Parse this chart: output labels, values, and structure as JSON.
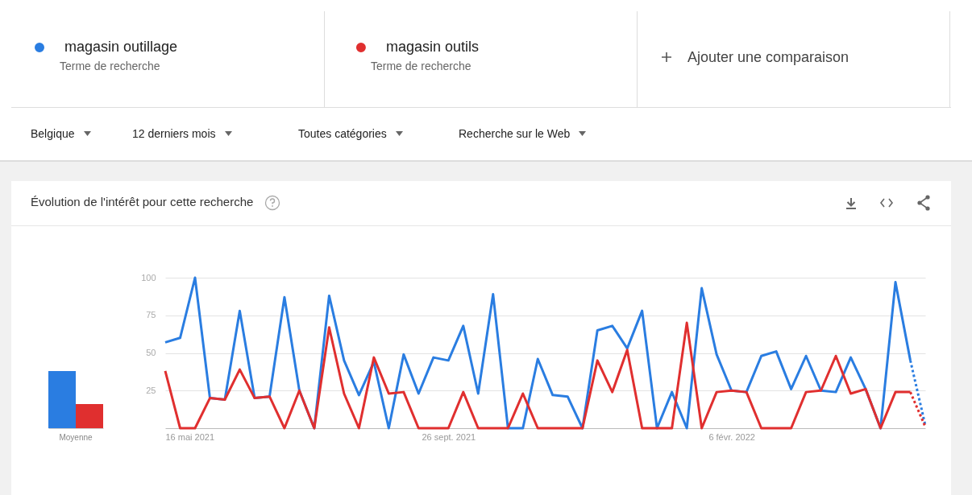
{
  "chart_data": [
    {
      "type": "other",
      "annotations": [
        "Terme de recherche",
        "Terme de recherche",
        "Ajouter une comparaison",
        "Belgique",
        "12 derniers mois",
        "Toutes catégories",
        "Recherche sur le Web"
      ]
    },
    {
      "type": "bar",
      "categories": [
        "Moyenne"
      ],
      "ylim": [
        0,
        100
      ],
      "tick_labels": "x",
      "series": [
        {
          "color": "#2a7de1",
          "values": [
            38
          ]
        },
        {
          "color": "#e02f2f",
          "values": [
            16
          ]
        }
      ]
    },
    {
      "type": "line",
      "title": "Évolution de l'intérêt pour cette recherche",
      "legend": "top",
      "grid": "y",
      "ylim": [
        0,
        100
      ],
      "yticks": [
        25,
        50,
        75,
        100
      ],
      "xlim": [
        "2021-05-16",
        "2022-05-08"
      ],
      "xticks": [
        {
          "value": "2021-05-16",
          "label": "16 mai 2021"
        },
        {
          "value": "2021-09-26",
          "label": "26 sept. 2021"
        },
        {
          "value": "2022-02-06",
          "label": "6 févr. 2022"
        }
      ],
      "x": [
        "2021-05-16",
        "2021-05-23",
        "2021-05-30",
        "2021-06-06",
        "2021-06-13",
        "2021-06-20",
        "2021-06-27",
        "2021-07-04",
        "2021-07-11",
        "2021-07-18",
        "2021-07-25",
        "2021-08-01",
        "2021-08-08",
        "2021-08-15",
        "2021-08-22",
        "2021-08-29",
        "2021-09-05",
        "2021-09-12",
        "2021-09-19",
        "2021-09-26",
        "2021-10-03",
        "2021-10-10",
        "2021-10-17",
        "2021-10-24",
        "2021-10-31",
        "2021-11-07",
        "2021-11-14",
        "2021-11-21",
        "2021-11-28",
        "2021-12-05",
        "2021-12-12",
        "2021-12-19",
        "2021-12-26",
        "2022-01-02",
        "2022-01-09",
        "2022-01-16",
        "2022-01-23",
        "2022-01-30",
        "2022-02-06",
        "2022-02-13",
        "2022-02-20",
        "2022-02-27",
        "2022-03-06",
        "2022-03-13",
        "2022-03-20",
        "2022-03-27",
        "2022-04-03",
        "2022-04-10",
        "2022-04-17",
        "2022-04-24",
        "2022-05-01"
      ],
      "series": [
        {
          "name": "magasin outillage",
          "color": "#2a7de1",
          "line_style": "solid",
          "values": [
            57,
            60,
            100,
            20,
            19,
            78,
            20,
            21,
            87,
            25,
            0,
            88,
            45,
            22,
            44,
            0,
            49,
            23,
            47,
            45,
            68,
            23,
            89,
            0,
            0,
            46,
            22,
            21,
            0,
            65,
            68,
            53,
            78,
            0,
            24,
            0,
            93,
            49,
            25,
            24,
            48,
            51,
            26,
            48,
            25,
            24,
            47,
            26,
            0,
            97,
            45
          ]
        },
        {
          "name": "magasin outils",
          "color": "#e02f2f",
          "line_style": "solid",
          "values": [
            38,
            0,
            0,
            20,
            19,
            39,
            20,
            21,
            0,
            25,
            0,
            67,
            23,
            0,
            47,
            23,
            24,
            0,
            0,
            0,
            24,
            0,
            0,
            0,
            23,
            0,
            0,
            0,
            0,
            45,
            24,
            52,
            0,
            0,
            0,
            70,
            0,
            24,
            25,
            24,
            0,
            0,
            0,
            24,
            25,
            48,
            23,
            26,
            0,
            24,
            24
          ]
        },
        {
          "color": "#2a7de1",
          "line_style": "dotted",
          "x": [
            "2022-05-01",
            "2022-05-08"
          ],
          "values": [
            45,
            2
          ]
        },
        {
          "color": "#e02f2f",
          "line_style": "dotted",
          "x": [
            "2022-05-01",
            "2022-05-08"
          ],
          "values": [
            24,
            1
          ]
        }
      ]
    }
  ]
}
